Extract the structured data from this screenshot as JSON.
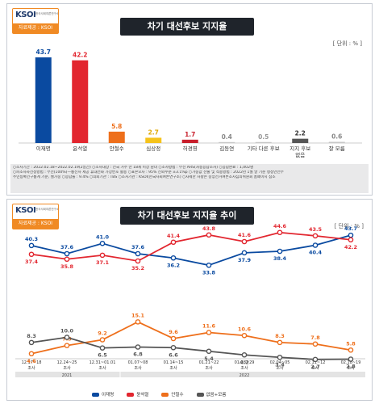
{
  "panel1": {
    "logo": {
      "mark": "KSOI",
      "org": "한국사회여론연구소",
      "source_label": "자료제공 : KSOI"
    },
    "title": "차기 대선후보 지지율",
    "unit": "[ 단위 : % ]",
    "notes": [
      "○조사기간 : 2022.02.18~2022.02.19(2일간) ○조사대상 : 전국 거주 만 18세 이상 남녀 ○조사방법 : 무선 ARS(자동응답조사) ○응답완료 : 1,002명",
      "○피조사자선정방법 : 무선(100%)—통신사 제공 휴대전화 가상번호 활용 ○표본오차 : 95% 신뢰수준 ±3.1%p ○가중값 산출 및 적용방법 : 2022년 1월 말 기준 행정안전부",
      "주민등록인구통계 기준, 셀가중 ○응답률 : 9.4% ○의뢰기관 : TBS ○조사기관 : KSOI(한국사회여론연구소) ○자세한 사항은 중앙선거여론조사심의위원회 홈페이지 참조"
    ]
  },
  "chart_data": [
    {
      "type": "bar",
      "title": "차기 대선후보 지지율",
      "categories": [
        "이재명",
        "윤석열",
        "안철수",
        "심상정",
        "허경영",
        "김동연",
        "기타 다른 후보",
        "지지 후보 없음",
        "잘 모름"
      ],
      "values": [
        43.7,
        42.2,
        5.8,
        2.7,
        1.7,
        0.4,
        0.5,
        2.2,
        0.6
      ],
      "value_labels": [
        "43.7",
        "42.2",
        "5.8",
        "2.7",
        "1.7",
        "0.4",
        "0.5",
        "2.2",
        "0.6"
      ],
      "colors": [
        "#0a4aa0",
        "#e2262f",
        "#ee6f1b",
        "#f5c31b",
        "#c81f2c",
        "#c8c8c8",
        "#c8c8c8",
        "#555555",
        "#c8c8c8"
      ],
      "label_colors": [
        "#0a4aa0",
        "#e2262f",
        "#ee6f1b",
        "#e0a800",
        "#c81f2c",
        "#888888",
        "#999999",
        "#333333",
        "#888888"
      ],
      "ylim": [
        0,
        50
      ],
      "unit": "%"
    },
    {
      "type": "line",
      "title": "차기 대선후보 지지율 추이",
      "x": [
        "12.17~18 조사",
        "12.24~25 조사",
        "12.31~01.01 조사",
        "01.07~08 조사",
        "01.14~15 조사",
        "01.21~22 조사",
        "01.28~29 조사",
        "02.04~05 조사",
        "02.11~12 조사",
        "02.18~19 조사"
      ],
      "x_line1": [
        "12.17~18",
        "12.24~25",
        "12.31~01.01",
        "01.07~08",
        "01.14~15",
        "01.21~22",
        "01.28~29",
        "02.04~05",
        "02.11~12",
        "02.18~19"
      ],
      "x_line2": "조사",
      "years": [
        {
          "label": "2021",
          "from": 0,
          "to": 2
        },
        {
          "label": "2022",
          "from": 3,
          "to": 9
        }
      ],
      "series": [
        {
          "name": "이재명",
          "color": "#0a4aa0",
          "values": [
            40.3,
            37.6,
            41.0,
            37.6,
            36.2,
            33.8,
            37.9,
            38.4,
            40.4,
            43.7
          ]
        },
        {
          "name": "윤석열",
          "color": "#e2262f",
          "values": [
            37.4,
            35.8,
            37.1,
            35.2,
            41.4,
            43.8,
            41.6,
            44.6,
            43.5,
            42.2
          ]
        },
        {
          "name": "안철수",
          "color": "#ee6f1b",
          "values": [
            4.6,
            7.3,
            9.2,
            15.1,
            9.6,
            11.6,
            10.6,
            8.3,
            7.8,
            5.8
          ]
        },
        {
          "name": "없음+모름",
          "color": "#555555",
          "values": [
            8.3,
            10.0,
            6.5,
            6.8,
            6.6,
            5.4,
            4.2,
            3.4,
            2.7,
            2.8
          ]
        }
      ],
      "ylim": [
        0,
        50
      ],
      "unit": "%"
    }
  ],
  "panel2": {
    "logo": {
      "mark": "KSOI",
      "org": "한국사회여론연구소",
      "source_label": "자료제공 : KSOI"
    },
    "title": "차기 대선후보 지지율 추이",
    "unit": "[ 단위 : % ]"
  }
}
